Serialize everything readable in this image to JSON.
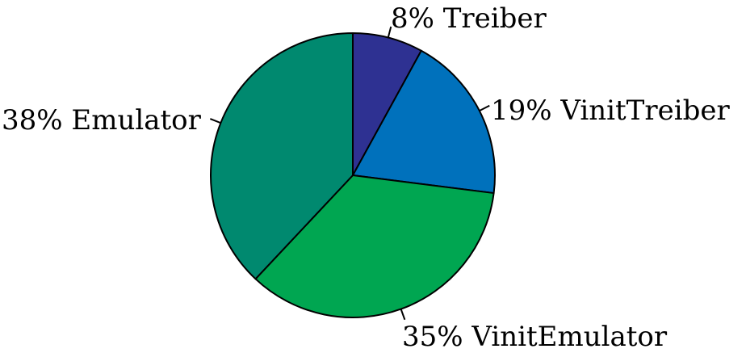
{
  "chart_data": {
    "type": "pie",
    "title": "",
    "start_angle_deg": 0,
    "direction": "clockwise",
    "slices": [
      {
        "label": "Treiber",
        "value": 8,
        "percent_label": "8%",
        "color": "#2e3192"
      },
      {
        "label": "VinitTreiber",
        "value": 19,
        "percent_label": "19%",
        "color": "#0071bc"
      },
      {
        "label": "VinitEmulator",
        "value": 35,
        "percent_label": "35%",
        "color": "#00a651"
      },
      {
        "label": "Emulator",
        "value": 38,
        "percent_label": "38%",
        "color": "#00896f"
      }
    ],
    "legend": "none"
  }
}
